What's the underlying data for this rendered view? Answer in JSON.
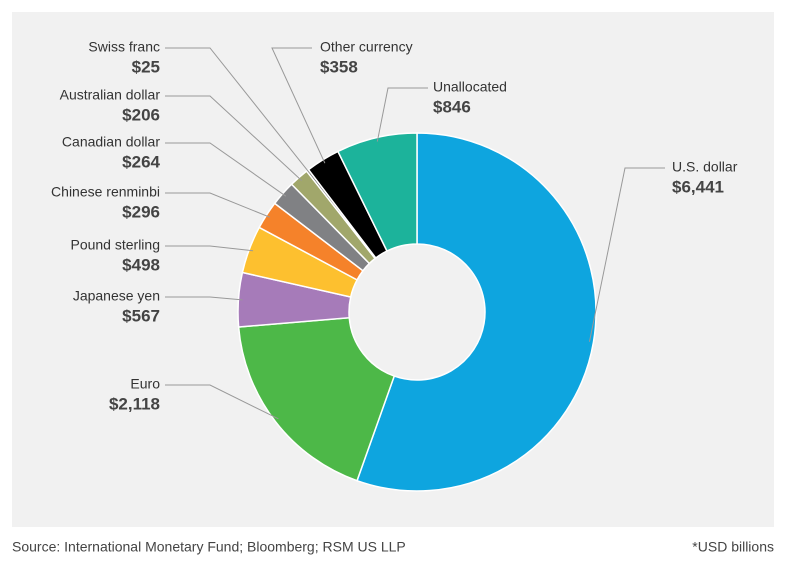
{
  "chart_data": {
    "type": "donut",
    "categories": [
      "U.S. dollar",
      "Euro",
      "Japanese yen",
      "Pound sterling",
      "Chinese renminbi",
      "Canadian dollar",
      "Australian dollar",
      "Swiss franc",
      "Other currency",
      "Unallocated"
    ],
    "values": [
      6441,
      2118,
      567,
      498,
      296,
      264,
      206,
      25,
      358,
      846
    ],
    "value_labels": [
      "$6,441",
      "$2,118",
      "$567",
      "$498",
      "$296",
      "$264",
      "$206",
      "$25",
      "$358",
      "$846"
    ],
    "colors": [
      "#0ea5df",
      "#4db848",
      "#a67bb9",
      "#fdc02f",
      "#f5822a",
      "#808184",
      "#a1a76b",
      "#6b6b6b",
      "#000000",
      "#1cb39b"
    ],
    "source": "Source: International Monetary Fund; Bloomberg; RSM US LLP",
    "note": "*USD billions"
  }
}
